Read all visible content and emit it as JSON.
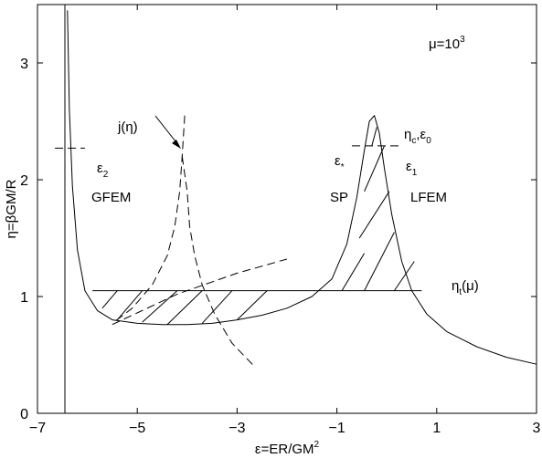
{
  "chart_data": {
    "type": "line",
    "xlim": [
      -7,
      3
    ],
    "ylim": [
      0,
      3.5
    ],
    "xticks": [
      -7,
      -5,
      -3,
      -1,
      1,
      3
    ],
    "yticks": [
      0,
      1,
      2,
      3
    ],
    "xlabel": {
      "main": "ε=ER/GM",
      "sup": "2"
    },
    "ylabel": "η=βGM/R",
    "grid": false,
    "series": [
      {
        "style": "solid",
        "points": [
          [
            -6.4,
            3.45
          ],
          [
            -6.36,
            2.6
          ],
          [
            -6.3,
            1.95
          ],
          [
            -6.2,
            1.4
          ],
          [
            -6.05,
            1.05
          ],
          [
            -5.8,
            0.88
          ],
          [
            -5.5,
            0.8
          ],
          [
            -5.0,
            0.77
          ],
          [
            -4.5,
            0.76
          ],
          [
            -4.0,
            0.76
          ],
          [
            -3.5,
            0.77
          ],
          [
            -3.0,
            0.8
          ],
          [
            -2.5,
            0.84
          ],
          [
            -2.0,
            0.9
          ],
          [
            -1.5,
            1.0
          ],
          [
            -1.1,
            1.15
          ],
          [
            -0.8,
            1.45
          ],
          [
            -0.6,
            1.85
          ],
          [
            -0.45,
            2.25
          ],
          [
            -0.35,
            2.5
          ],
          [
            -0.25,
            2.55
          ],
          [
            -0.15,
            2.4
          ],
          [
            -0.05,
            2.1
          ],
          [
            0.1,
            1.7
          ],
          [
            0.3,
            1.3
          ],
          [
            0.5,
            1.05
          ],
          [
            0.8,
            0.85
          ],
          [
            1.2,
            0.7
          ],
          [
            1.8,
            0.57
          ],
          [
            2.4,
            0.48
          ],
          [
            3.0,
            0.42
          ]
        ]
      },
      {
        "style": "dashed",
        "points": [
          [
            -4.05,
            2.55
          ],
          [
            -4.1,
            2.2
          ],
          [
            -4.15,
            1.9
          ],
          [
            -4.25,
            1.6
          ],
          [
            -4.4,
            1.35
          ],
          [
            -4.7,
            1.1
          ],
          [
            -5.1,
            0.9
          ],
          [
            -5.5,
            0.77
          ]
        ]
      },
      {
        "style": "dashed",
        "points": [
          [
            -4.1,
            2.2
          ],
          [
            -4.0,
            1.9
          ],
          [
            -3.95,
            1.6
          ],
          [
            -3.85,
            1.35
          ],
          [
            -3.7,
            1.1
          ],
          [
            -3.45,
            0.85
          ],
          [
            -3.1,
            0.6
          ],
          [
            -2.65,
            0.4
          ]
        ]
      },
      {
        "style": "dashed",
        "points": [
          [
            -5.5,
            0.76
          ],
          [
            -4.2,
            1.02
          ],
          [
            -3.0,
            1.2
          ],
          [
            -2.0,
            1.32
          ]
        ]
      },
      {
        "style": "solid",
        "points": [
          [
            -6.45,
            0
          ],
          [
            -6.45,
            3.5
          ]
        ]
      },
      {
        "style": "solid",
        "points": [
          [
            -5.9,
            1.05
          ],
          [
            0.7,
            1.05
          ]
        ]
      },
      {
        "style": "dashed",
        "points": [
          [
            -6.65,
            2.27
          ],
          [
            -6.05,
            2.27
          ]
        ]
      },
      {
        "style": "dashed",
        "points": [
          [
            -0.7,
            2.29
          ],
          [
            0.25,
            2.29
          ]
        ]
      }
    ],
    "hatch_segments": [
      [
        [
          -5.7,
          0.9
        ],
        [
          -5.4,
          1.05
        ]
      ],
      [
        [
          -5.4,
          0.8
        ],
        [
          -4.9,
          1.05
        ]
      ],
      [
        [
          -4.9,
          0.78
        ],
        [
          -4.2,
          1.05
        ]
      ],
      [
        [
          -4.4,
          0.76
        ],
        [
          -3.7,
          1.05
        ]
      ],
      [
        [
          -3.7,
          0.77
        ],
        [
          -3.1,
          1.05
        ]
      ],
      [
        [
          -3.0,
          0.8
        ],
        [
          -2.4,
          1.05
        ]
      ],
      [
        [
          -0.9,
          1.05
        ],
        [
          -0.45,
          1.37
        ]
      ],
      [
        [
          -0.45,
          1.05
        ],
        [
          0.15,
          1.55
        ]
      ],
      [
        [
          0.15,
          1.05
        ],
        [
          0.55,
          1.3
        ]
      ],
      [
        [
          -0.55,
          1.5
        ],
        [
          0.05,
          1.9
        ]
      ],
      [
        [
          -0.45,
          1.9
        ],
        [
          -0.05,
          2.29
        ]
      ],
      [
        [
          -0.3,
          2.29
        ],
        [
          -0.2,
          2.45
        ]
      ]
    ],
    "annotations": [
      {
        "main": "μ=10",
        "sup": "3"
      },
      {
        "main": "j(η)"
      },
      {
        "main": "ε",
        "sub": "2"
      },
      {
        "main": "GFEM"
      },
      {
        "main": "η",
        "sub": "c",
        "rest": ",ε",
        "sub2": "0"
      },
      {
        "main": "ε",
        "sub": "*"
      },
      {
        "main": "ε",
        "sub": "1"
      },
      {
        "main": "SP"
      },
      {
        "main": "LFEM"
      },
      {
        "main": "η",
        "sub": "t",
        "rest": "(μ)"
      }
    ]
  }
}
